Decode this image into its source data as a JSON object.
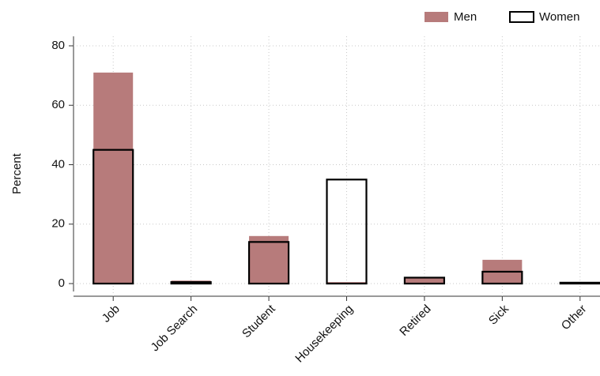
{
  "chart_data": {
    "type": "bar",
    "y_label": "Percent",
    "categories": [
      "Job",
      "Job Search",
      "Student",
      "Housekeeping",
      "Retired",
      "Sick",
      "Other"
    ],
    "series": [
      {
        "name": "Men",
        "color": "#b77b7b",
        "values": [
          71,
          1,
          16,
          0.5,
          2,
          8,
          0.5
        ]
      },
      {
        "name": "Women",
        "color": "#000000",
        "values": [
          45,
          0.5,
          14,
          35,
          2,
          4,
          0.3
        ]
      }
    ],
    "ylim": [
      0,
      80
    ],
    "yticks": [
      0,
      20,
      40,
      60,
      80
    ],
    "grid": true,
    "legend": "top-right"
  }
}
